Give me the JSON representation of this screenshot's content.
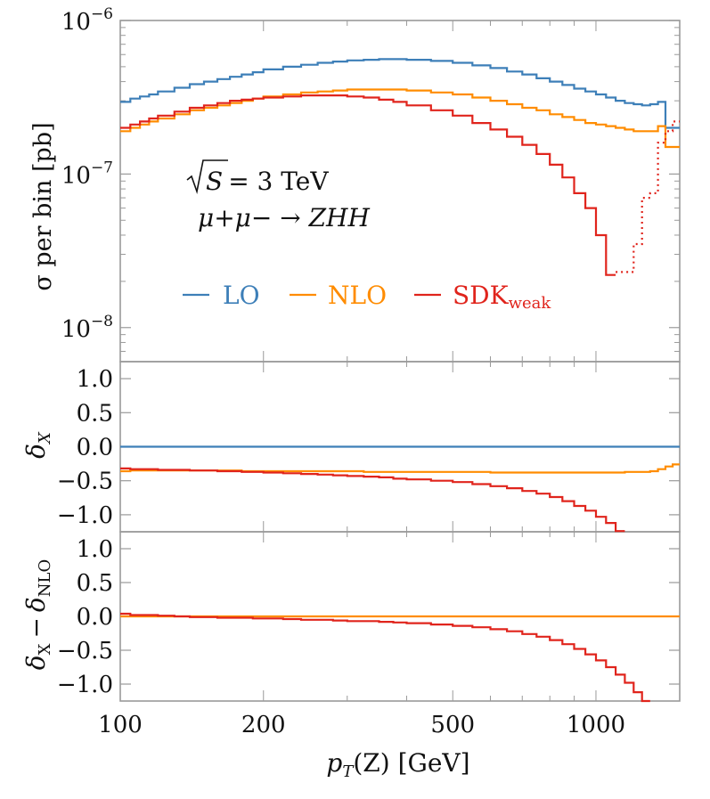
{
  "chart_data": {
    "type": "step",
    "x_scale": "log",
    "xlim": [
      100,
      1500
    ],
    "xlabel_main": "p",
    "xlabel_sub": "T",
    "xlabel_rest": "(Z) [GeV]",
    "x_ticks": [
      "100",
      "200",
      "500",
      "1000"
    ],
    "x_tick_values": [
      100,
      200,
      500,
      1000
    ],
    "bin_edges": [
      100,
      105,
      110,
      115,
      120,
      130,
      140,
      150,
      160,
      170,
      180,
      190,
      200,
      220,
      240,
      260,
      280,
      300,
      325,
      350,
      375,
      400,
      450,
      500,
      550,
      600,
      650,
      700,
      750,
      800,
      850,
      900,
      950,
      1000,
      1050,
      1100,
      1150,
      1200,
      1250,
      1300,
      1350,
      1400,
      1450,
      1500
    ],
    "colors": {
      "LO": "#3d7fb8",
      "NLO": "#ff8c00",
      "SDK_weak": "#e0241c"
    },
    "legend": [
      {
        "key": "LO",
        "label": "LO"
      },
      {
        "key": "NLO",
        "label": "NLO"
      },
      {
        "key": "SDK_weak",
        "label": "SDK",
        "sub": "weak"
      }
    ],
    "annotation": {
      "line1_sqrt": "S",
      "line1_rest": "= 3 TeV",
      "line2": "μ+μ− → ZHH"
    },
    "panels": [
      {
        "id": "cross-section",
        "ylabel": "σ per bin [pb]",
        "y_scale": "log",
        "ylim": [
          6e-09,
          1e-06
        ],
        "y_ticks": [
          {
            "value": 1e-06,
            "base": "10",
            "exp": "−6"
          },
          {
            "value": 1e-07,
            "base": "10",
            "exp": "−7"
          },
          {
            "value": 1e-08,
            "base": "10",
            "exp": "−8"
          }
        ],
        "series": [
          {
            "key": "LO",
            "values": [
              2.95e-07,
              3.1e-07,
              3.2e-07,
              3.3e-07,
              3.45e-07,
              3.65e-07,
              3.85e-07,
              4e-07,
              4.15e-07,
              4.3e-07,
              4.45e-07,
              4.6e-07,
              4.8e-07,
              5e-07,
              5.15e-07,
              5.3e-07,
              5.4e-07,
              5.5e-07,
              5.55e-07,
              5.6e-07,
              5.6e-07,
              5.55e-07,
              5.45e-07,
              5.3e-07,
              5.1e-07,
              4.9e-07,
              4.65e-07,
              4.45e-07,
              4.2e-07,
              4e-07,
              3.8e-07,
              3.6e-07,
              3.45e-07,
              3.3e-07,
              3.15e-07,
              3e-07,
              2.9e-07,
              2.85e-07,
              2.8e-07,
              2.85e-07,
              2.95e-07,
              2e-07,
              2e-07
            ]
          },
          {
            "key": "NLO",
            "values": [
              1.9e-07,
              2e-07,
              2.1e-07,
              2.2e-07,
              2.3e-07,
              2.45e-07,
              2.6e-07,
              2.7e-07,
              2.8e-07,
              2.9e-07,
              3e-07,
              3.1e-07,
              3.2e-07,
              3.3e-07,
              3.4e-07,
              3.45e-07,
              3.5e-07,
              3.55e-07,
              3.55e-07,
              3.55e-07,
              3.55e-07,
              3.5e-07,
              3.4e-07,
              3.3e-07,
              3.15e-07,
              3e-07,
              2.85e-07,
              2.7e-07,
              2.6e-07,
              2.45e-07,
              2.35e-07,
              2.25e-07,
              2.15e-07,
              2.1e-07,
              2.05e-07,
              2e-07,
              1.95e-07,
              1.9e-07,
              1.9e-07,
              1.9e-07,
              2.05e-07,
              1.5e-07,
              1.5e-07
            ]
          },
          {
            "key": "SDK_weak",
            "values": [
              2e-07,
              2.1e-07,
              2.2e-07,
              2.3e-07,
              2.4e-07,
              2.55e-07,
              2.7e-07,
              2.8e-07,
              2.9e-07,
              3e-07,
              3.05e-07,
              3.1e-07,
              3.15e-07,
              3.2e-07,
              3.25e-07,
              3.25e-07,
              3.25e-07,
              3.2e-07,
              3.15e-07,
              3.05e-07,
              2.95e-07,
              2.8e-07,
              2.6e-07,
              2.4e-07,
              2.15e-07,
              1.95e-07,
              1.75e-07,
              1.55e-07,
              1.35e-07,
              1.15e-07,
              9.5e-08,
              7.5e-08,
              6e-08,
              4e-08,
              2.2e-08
            ]
          },
          {
            "key": "SDK_weak",
            "style": "dotted",
            "start_bin": 35,
            "values": [
              2.3e-08,
              2.3e-08,
              3.5e-08,
              7e-08,
              7.5e-08,
              1.6e-07,
              1.9e-07,
              2.2e-07
            ]
          }
        ]
      },
      {
        "id": "delta-x",
        "ylabel_main": "δ",
        "ylabel_sub": "X",
        "y_scale": "linear",
        "ylim": [
          -1.25,
          1.25
        ],
        "y_ticks": [
          {
            "value": 1.0,
            "label": "1.0"
          },
          {
            "value": 0.5,
            "label": "0.5"
          },
          {
            "value": 0.0,
            "label": "0.0"
          },
          {
            "value": -0.5,
            "label": "−0.5"
          },
          {
            "value": -1.0,
            "label": "−1.0"
          }
        ],
        "series": [
          {
            "key": "LO",
            "values": [
              0,
              0,
              0,
              0,
              0,
              0,
              0,
              0,
              0,
              0,
              0,
              0,
              0,
              0,
              0,
              0,
              0,
              0,
              0,
              0,
              0,
              0,
              0,
              0,
              0,
              0,
              0,
              0,
              0,
              0,
              0,
              0,
              0,
              0,
              0,
              0,
              0,
              0,
              0,
              0,
              0,
              0,
              0
            ]
          },
          {
            "key": "NLO",
            "values": [
              -0.36,
              -0.35,
              -0.35,
              -0.35,
              -0.35,
              -0.35,
              -0.35,
              -0.35,
              -0.35,
              -0.35,
              -0.36,
              -0.36,
              -0.36,
              -0.36,
              -0.36,
              -0.36,
              -0.36,
              -0.36,
              -0.37,
              -0.37,
              -0.37,
              -0.37,
              -0.37,
              -0.37,
              -0.37,
              -0.38,
              -0.38,
              -0.38,
              -0.38,
              -0.38,
              -0.38,
              -0.38,
              -0.38,
              -0.38,
              -0.38,
              -0.38,
              -0.37,
              -0.37,
              -0.37,
              -0.36,
              -0.33,
              -0.29,
              -0.26
            ]
          },
          {
            "key": "SDK_weak",
            "values": [
              -0.32,
              -0.33,
              -0.33,
              -0.33,
              -0.34,
              -0.34,
              -0.35,
              -0.35,
              -0.36,
              -0.36,
              -0.37,
              -0.37,
              -0.38,
              -0.39,
              -0.4,
              -0.41,
              -0.42,
              -0.43,
              -0.44,
              -0.45,
              -0.47,
              -0.48,
              -0.5,
              -0.52,
              -0.55,
              -0.58,
              -0.61,
              -0.65,
              -0.69,
              -0.74,
              -0.8,
              -0.87,
              -0.94,
              -1.03,
              -1.12,
              -1.24
            ]
          }
        ]
      },
      {
        "id": "delta-x-minus-nlo",
        "ylabel_main": "δ",
        "ylabel_sub": "X",
        "ylabel_minus": "−",
        "ylabel_main2": "δ",
        "ylabel_sub2": "NLO",
        "y_scale": "linear",
        "ylim": [
          -1.25,
          1.25
        ],
        "y_ticks": [
          {
            "value": 1.0,
            "label": "1.0"
          },
          {
            "value": 0.5,
            "label": "0.5"
          },
          {
            "value": 0.0,
            "label": "0.0"
          },
          {
            "value": -0.5,
            "label": "−0.5"
          },
          {
            "value": -1.0,
            "label": "−1.0"
          }
        ],
        "series": [
          {
            "key": "NLO",
            "values": [
              0,
              0,
              0,
              0,
              0,
              0,
              0,
              0,
              0,
              0,
              0,
              0,
              0,
              0,
              0,
              0,
              0,
              0,
              0,
              0,
              0,
              0,
              0,
              0,
              0,
              0,
              0,
              0,
              0,
              0,
              0,
              0,
              0,
              0,
              0,
              0,
              0,
              0,
              0,
              0,
              0,
              0,
              0
            ]
          },
          {
            "key": "SDK_weak",
            "values": [
              0.04,
              0.02,
              0.02,
              0.02,
              0.01,
              0.0,
              -0.01,
              -0.01,
              -0.02,
              -0.02,
              -0.02,
              -0.03,
              -0.03,
              -0.04,
              -0.05,
              -0.05,
              -0.06,
              -0.07,
              -0.07,
              -0.08,
              -0.09,
              -0.1,
              -0.12,
              -0.14,
              -0.16,
              -0.19,
              -0.22,
              -0.26,
              -0.3,
              -0.35,
              -0.41,
              -0.48,
              -0.56,
              -0.65,
              -0.75,
              -0.86,
              -0.98,
              -1.12,
              -1.25
            ]
          }
        ]
      }
    ]
  }
}
